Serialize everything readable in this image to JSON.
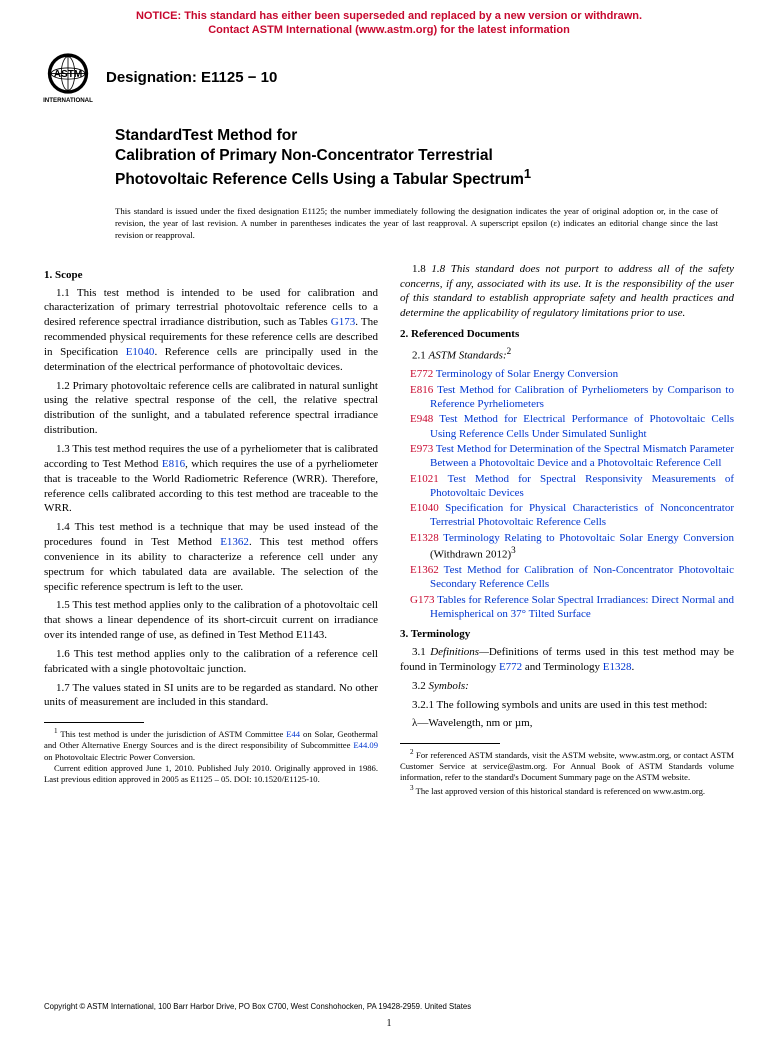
{
  "notice": {
    "color": "#c7082e",
    "line1": "NOTICE: This standard has either been superseded and replaced by a new version or withdrawn.",
    "line2": "Contact ASTM International (www.astm.org) for the latest information"
  },
  "designation": "Designation: E1125 − 10",
  "title": {
    "line1": "StandardTest Method for",
    "line2": "Calibration of Primary Non-Concentrator Terrestrial",
    "line3": "Photovoltaic Reference Cells Using a Tabular Spectrum",
    "sup": "1"
  },
  "issuance": "This standard is issued under the fixed designation E1125; the number immediately following the designation indicates the year of original adoption or, in the case of revision, the year of last revision. A number in parentheses indicates the year of last reapproval. A superscript epsilon (ε) indicates an editorial change since the last revision or reapproval.",
  "link_color": "#0036d0",
  "code_color": "#c7082e",
  "left": {
    "s1_head": "1. Scope",
    "p11a": "1.1 This test method is intended to be used for calibration and characterization of primary terrestrial photovoltaic reference cells to a desired reference spectral irradiance distribution, such as Tables ",
    "p11_g173": "G173",
    "p11b": ". The recommended physical requirements for these reference cells are described in Specification ",
    "p11_e1040": "E1040",
    "p11c": ". Reference cells are principally used in the determination of the electrical performance of photovoltaic devices.",
    "p12": "1.2 Primary photovoltaic reference cells are calibrated in natural sunlight using the relative spectral response of the cell, the relative spectral distribution of the sunlight, and a tabulated reference spectral irradiance distribution.",
    "p13a": "1.3 This test method requires the use of a pyrheliometer that is calibrated according to Test Method ",
    "p13_e816": "E816",
    "p13b": ", which requires the use of a pyrheliometer that is traceable to the World Radiometric Reference (WRR). Therefore, reference cells calibrated according to this test method are traceable to the WRR.",
    "p14a": "1.4 This test method is a technique that may be used instead of the procedures found in Test Method ",
    "p14_e1362": "E1362",
    "p14b": ". This test method offers convenience in its ability to characterize a reference cell under any spectrum for which tabulated data are available. The selection of the specific reference spectrum is left to the user.",
    "p15": "1.5 This test method applies only to the calibration of a photovoltaic cell that shows a linear dependence of its short-circuit current on irradiance over its intended range of use, as defined in Test Method E1143.",
    "p16": "1.6 This test method applies only to the calibration of a reference cell fabricated with a single photovoltaic junction.",
    "p17": "1.7 The values stated in SI units are to be regarded as standard. No other units of measurement are included in this standard.",
    "fn1a": " This test method is under the jurisdiction of ASTM Committee ",
    "fn1_e44": "E44",
    "fn1b": " on Solar, Geothermal and Other Alternative Energy Sources and is the direct responsibility of Subcommittee ",
    "fn1_e4409": "E44.09",
    "fn1c": " on Photovoltaic Electric Power Conversion.",
    "fn1d": "Current edition approved June 1, 2010. Published July 2010. Originally approved in 1986. Last previous edition approved in 2005 as E1125 – 05. DOI: 10.1520/E1125-10."
  },
  "right": {
    "p18": "1.8 This standard does not purport to address all of the safety concerns, if any, associated with its use. It is the responsibility of the user of this standard to establish appropriate safety and health practices and determine the applicability of regulatory limitations prior to use.",
    "s2_head": "2. Referenced Documents",
    "p21": "2.1 ASTM Standards:",
    "refs": [
      {
        "code": "E772",
        "text": "Terminology of Solar Energy Conversion"
      },
      {
        "code": "E816",
        "text": "Test Method for Calibration of Pyrheliometers by Comparison to Reference Pyrheliometers"
      },
      {
        "code": "E948",
        "text": "Test Method for Electrical Performance of Photovoltaic Cells Using Reference Cells Under Simulated Sunlight"
      },
      {
        "code": "E973",
        "text": "Test Method for Determination of the Spectral Mismatch Parameter Between a Photovoltaic Device and a Photovoltaic Reference Cell"
      },
      {
        "code": "E1021",
        "text": "Test Method for Spectral Responsivity Measurements of Photovoltaic Devices"
      },
      {
        "code": "E1040",
        "text": "Specification for Physical Characteristics of Nonconcentrator Terrestrial Photovoltaic Reference Cells"
      },
      {
        "code": "E1328",
        "text": "Terminology Relating to Photovoltaic Solar Energy Conversion",
        "suffix": " (Withdrawn 2012)",
        "sup": "3"
      },
      {
        "code": "E1362",
        "text": "Test Method for Calibration of Non-Concentrator Photovoltaic Secondary Reference Cells"
      },
      {
        "code": "G173",
        "text": "Tables for Reference Solar Spectral Irradiances: Direct Normal and Hemispherical on 37° Tilted Surface"
      }
    ],
    "s3_head": "3. Terminology",
    "p31a": "3.1 Definitions—",
    "p31b": "Definitions of terms used in this test method may be found in Terminology ",
    "p31_e772": "E772",
    "p31c": " and Terminology ",
    "p31_e1328": "E1328",
    "p31d": ".",
    "p32": "3.2 Symbols:",
    "p321": "3.2.1 The following symbols and units are used in this test method:",
    "p_lambda": "λ—Wavelength, nm or µm,",
    "fn2": " For referenced ASTM standards, visit the ASTM website, www.astm.org, or contact ASTM Customer Service at service@astm.org. For Annual Book of ASTM Standards volume information, refer to the standard's Document Summary page on the ASTM website.",
    "fn3": " The last approved version of this historical standard is referenced on www.astm.org."
  },
  "copyright": "Copyright © ASTM International, 100 Barr Harbor Drive, PO Box C700, West Conshohocken, PA 19428-2959. United States",
  "pagenum": "1"
}
